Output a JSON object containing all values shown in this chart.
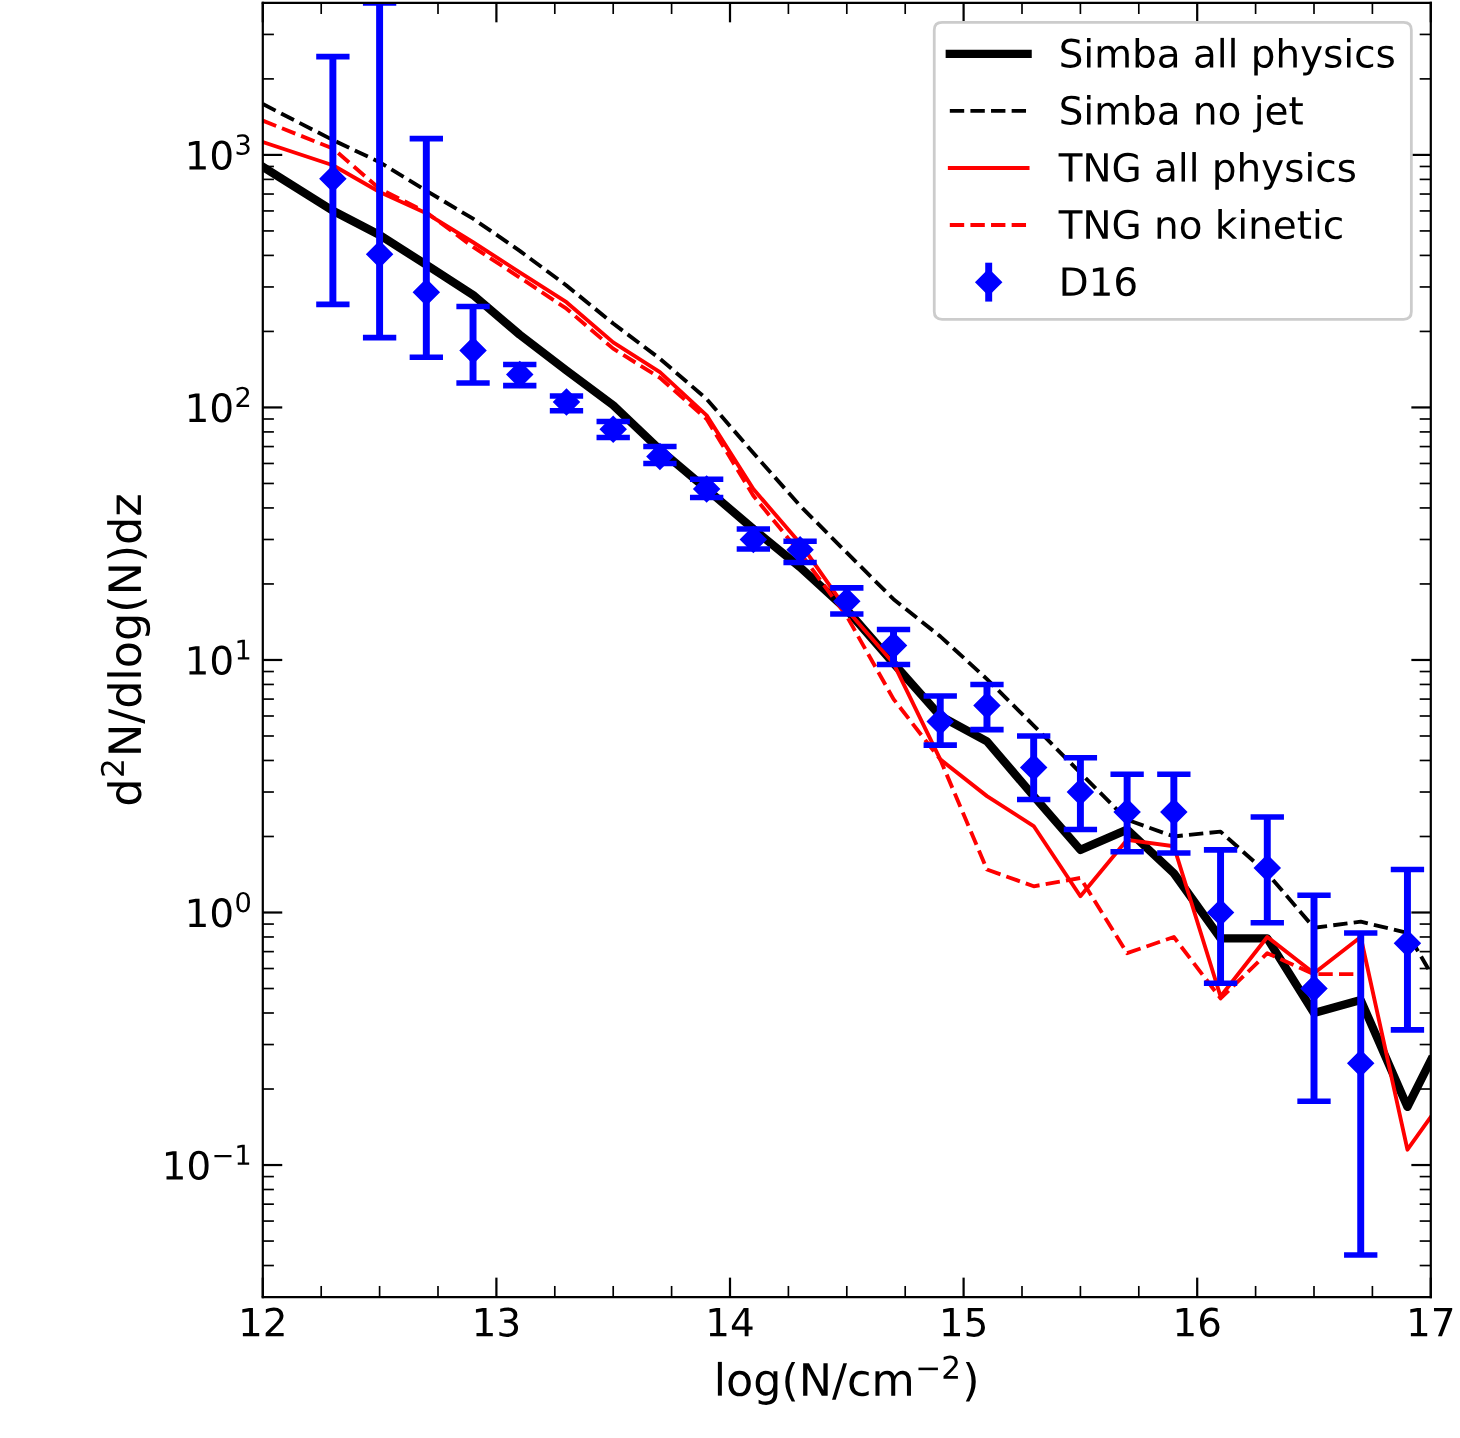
{
  "chart_data": {
    "type": "line",
    "xlabel": "log(N/cm$^{−2}$)",
    "ylabel": "d$^{2}$N/dlog(N)dz",
    "log": "y",
    "xlim": [
      12,
      17
    ],
    "ylim": [
      0.03,
      4000
    ],
    "xticks": [
      12,
      13,
      14,
      15,
      16,
      17
    ],
    "yticks": [
      {
        "value": 0.1,
        "label": "10$^{−1}$"
      },
      {
        "value": 1,
        "label": "10$^{0}$"
      },
      {
        "value": 10,
        "label": "10$^{1}$"
      },
      {
        "value": 100,
        "label": "10$^{2}$"
      },
      {
        "value": 1000,
        "label": "10$^{3}$"
      }
    ],
    "grid": false,
    "legend": "top right",
    "series": [
      {
        "name": "Simba all physics",
        "line_style": "solid",
        "color": "#000000",
        "x": [
          12.0,
          12.3,
          12.5,
          12.7,
          12.9,
          13.1,
          13.3,
          13.5,
          13.7,
          13.9,
          14.1,
          14.3,
          14.5,
          14.7,
          14.9,
          15.1,
          15.3,
          15.5,
          15.7,
          15.9,
          16.1,
          16.3,
          16.5,
          16.7,
          16.9,
          17.0
        ],
        "values": [
          898,
          601,
          482,
          367,
          279,
          194,
          140,
          102,
          68,
          47.5,
          33,
          23.3,
          15.8,
          9.7,
          6.0,
          4.76,
          2.89,
          1.77,
          2.13,
          1.43,
          0.79,
          0.79,
          0.4,
          0.45,
          0.17,
          0.26
        ]
      },
      {
        "name": "Simba no jet",
        "line_style": "dashed",
        "color": "#000000",
        "x": [
          12.0,
          12.3,
          12.5,
          12.7,
          12.9,
          13.1,
          13.3,
          13.5,
          13.7,
          13.9,
          14.1,
          14.3,
          14.5,
          14.7,
          14.9,
          15.1,
          15.3,
          15.5,
          15.7,
          15.9,
          16.1,
          16.3,
          16.5,
          16.7,
          16.9,
          17.0
        ],
        "values": [
          1590,
          1145,
          936,
          721,
          559,
          417,
          304,
          215,
          156,
          108,
          66,
          40.8,
          26.6,
          17.4,
          12.4,
          8.4,
          5.5,
          3.57,
          2.33,
          2.0,
          2.09,
          1.43,
          0.87,
          0.92,
          0.83,
          0.575
        ]
      },
      {
        "name": "TNG all physics",
        "line_style": "solid",
        "color": "#ff0000",
        "x": [
          12.0,
          12.3,
          12.5,
          12.7,
          12.9,
          13.1,
          13.3,
          13.5,
          13.7,
          13.9,
          14.1,
          14.3,
          14.5,
          14.7,
          14.9,
          15.1,
          15.3,
          15.5,
          15.7,
          15.9,
          16.1,
          16.3,
          16.5,
          16.7,
          16.9,
          17.0
        ],
        "values": [
          1125,
          910,
          713,
          587,
          451,
          343,
          261,
          181,
          138,
          93,
          47.5,
          29,
          15.8,
          9.7,
          4.04,
          2.89,
          2.2,
          1.16,
          1.94,
          1.83,
          0.465,
          0.8,
          0.575,
          0.8,
          0.115,
          0.155
        ]
      },
      {
        "name": "TNG no kinetic",
        "line_style": "dashed",
        "color": "#ff0000",
        "x": [
          12.0,
          12.3,
          12.5,
          12.7,
          12.9,
          13.1,
          13.3,
          13.5,
          13.7,
          13.9,
          14.1,
          14.3,
          14.5,
          14.7,
          14.9,
          15.1,
          15.3,
          15.5,
          15.7,
          15.9,
          16.1,
          16.3,
          16.5,
          16.7
        ],
        "values": [
          1367,
          1060,
          735,
          593,
          432,
          327,
          246,
          171,
          131,
          90,
          44.7,
          26.6,
          14.9,
          7.0,
          4.04,
          1.48,
          1.27,
          1.37,
          0.69,
          0.8,
          0.457,
          0.69,
          0.57,
          0.57
        ]
      },
      {
        "name": "D16",
        "type": "scatter",
        "marker": "diamond",
        "color": "#0000ff",
        "x": [
          12.3,
          12.5,
          12.7,
          12.9,
          13.1,
          13.3,
          13.5,
          13.7,
          13.9,
          14.1,
          14.3,
          14.5,
          14.7,
          14.9,
          15.1,
          15.3,
          15.5,
          15.7,
          15.9,
          16.1,
          16.3,
          16.5,
          16.7,
          16.9
        ],
        "values": [
          805,
          404,
          286,
          168,
          135,
          105,
          82,
          64,
          47.5,
          30,
          27.3,
          17.1,
          11.4,
          5.7,
          6.6,
          3.75,
          3.0,
          2.5,
          2.5,
          1.0,
          1.5,
          0.5,
          0.253,
          0.756
        ],
        "errors": [
          [
            256,
            2450
          ],
          [
            189,
            4000
          ],
          [
            158,
            1160
          ],
          [
            125,
            251
          ],
          [
            122,
            148
          ],
          [
            97,
            111
          ],
          [
            76,
            88
          ],
          [
            60,
            70
          ],
          [
            44,
            52
          ],
          [
            27.5,
            33
          ],
          [
            24.3,
            29.5
          ],
          [
            15.2,
            19.3
          ],
          [
            9.6,
            13.2
          ],
          [
            4.6,
            7.2
          ],
          [
            5.3,
            8.0
          ],
          [
            2.8,
            5.0
          ],
          [
            2.13,
            4.1
          ],
          [
            1.74,
            3.53
          ],
          [
            1.72,
            3.53
          ],
          [
            0.525,
            1.77
          ],
          [
            0.91,
            2.39
          ],
          [
            0.179,
            1.17
          ],
          [
            0.044,
            0.83
          ],
          [
            0.343,
            1.48
          ]
        ]
      }
    ]
  }
}
